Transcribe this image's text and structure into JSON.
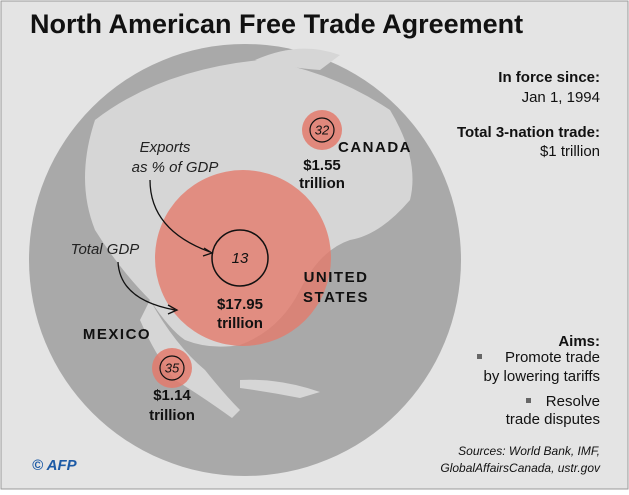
{
  "header": {
    "title": "North American Free Trade Agreement"
  },
  "facts": {
    "in_force_label": "In force since:",
    "in_force_value": "Jan 1, 1994",
    "trade_label": "Total 3-nation trade:",
    "trade_value": "$1 trillion"
  },
  "legend": {
    "exports_line1": "Exports",
    "exports_line2": "as % of GDP",
    "gdp": "Total GDP"
  },
  "countries": [
    {
      "name": "CANADA",
      "exports_pct": "32",
      "gdp_line1": "$1.55",
      "gdp_line2": "trillion"
    },
    {
      "name_line1": "UNITED",
      "name_line2": "STATES",
      "exports_pct": "13",
      "gdp_line1": "$17.95",
      "gdp_line2": "trillion"
    },
    {
      "name": "MEXICO",
      "exports_pct": "35",
      "gdp_line1": "$1.14",
      "gdp_line2": "trillion"
    }
  ],
  "aims": {
    "title": "Aims:",
    "items": [
      [
        "Promote trade",
        "by lowering tariffs"
      ],
      [
        "Resolve",
        "trade disputes"
      ]
    ]
  },
  "footer": {
    "logo": "© AFP",
    "sources_line1": "Sources: World Bank, IMF,",
    "sources_line2": "GlobalAffairsCanada, ustr.gov"
  }
}
